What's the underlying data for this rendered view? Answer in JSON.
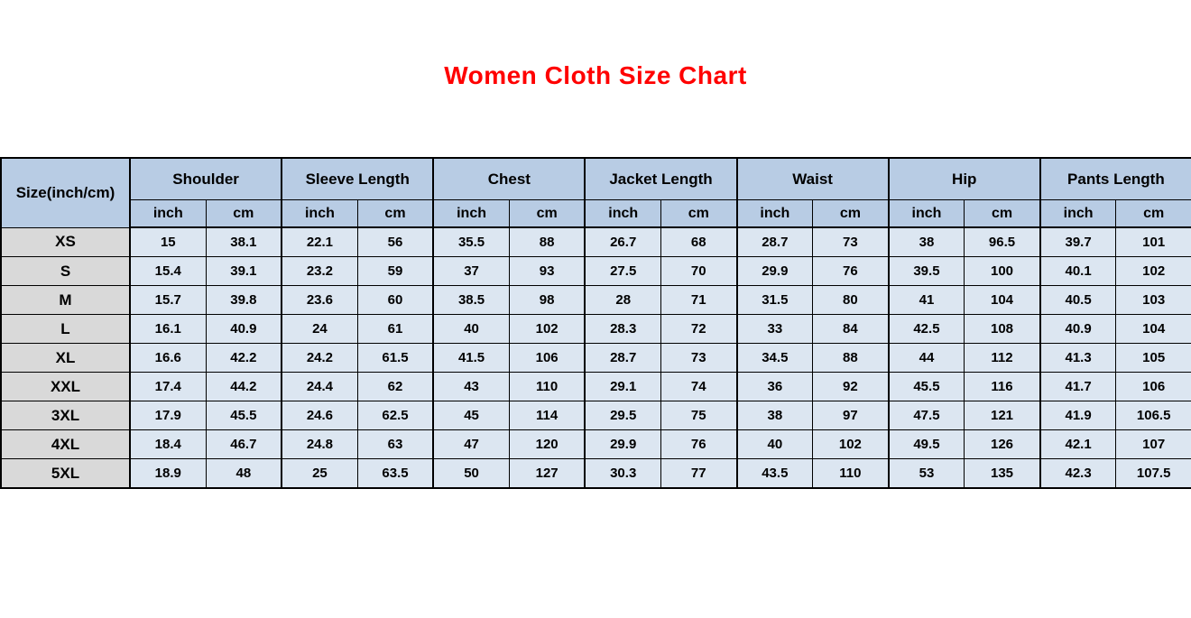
{
  "title": "Women Cloth Size Chart",
  "colors": {
    "title": "#ff0000",
    "header_bg": "#b8cce4",
    "cell_bg": "#dce6f1",
    "size_column_bg": "#d9d9d9",
    "border": "#000000",
    "page_bg": "#ffffff"
  },
  "chart_data": {
    "type": "table",
    "title": "Women Cloth Size Chart",
    "corner_header": "Size(inch/cm)",
    "column_groups": [
      "Shoulder",
      "Sleeve Length",
      "Chest",
      "Jacket Length",
      "Waist",
      "Hip",
      "Pants Length"
    ],
    "sub_columns": [
      "inch",
      "cm"
    ],
    "rows": [
      {
        "size": "XS",
        "values": [
          "15",
          "38.1",
          "22.1",
          "56",
          "35.5",
          "88",
          "26.7",
          "68",
          "28.7",
          "73",
          "38",
          "96.5",
          "39.7",
          "101"
        ]
      },
      {
        "size": "S",
        "values": [
          "15.4",
          "39.1",
          "23.2",
          "59",
          "37",
          "93",
          "27.5",
          "70",
          "29.9",
          "76",
          "39.5",
          "100",
          "40.1",
          "102"
        ]
      },
      {
        "size": "M",
        "values": [
          "15.7",
          "39.8",
          "23.6",
          "60",
          "38.5",
          "98",
          "28",
          "71",
          "31.5",
          "80",
          "41",
          "104",
          "40.5",
          "103"
        ]
      },
      {
        "size": "L",
        "values": [
          "16.1",
          "40.9",
          "24",
          "61",
          "40",
          "102",
          "28.3",
          "72",
          "33",
          "84",
          "42.5",
          "108",
          "40.9",
          "104"
        ]
      },
      {
        "size": "XL",
        "values": [
          "16.6",
          "42.2",
          "24.2",
          "61.5",
          "41.5",
          "106",
          "28.7",
          "73",
          "34.5",
          "88",
          "44",
          "112",
          "41.3",
          "105"
        ]
      },
      {
        "size": "XXL",
        "values": [
          "17.4",
          "44.2",
          "24.4",
          "62",
          "43",
          "110",
          "29.1",
          "74",
          "36",
          "92",
          "45.5",
          "116",
          "41.7",
          "106"
        ]
      },
      {
        "size": "3XL",
        "values": [
          "17.9",
          "45.5",
          "24.6",
          "62.5",
          "45",
          "114",
          "29.5",
          "75",
          "38",
          "97",
          "47.5",
          "121",
          "41.9",
          "106.5"
        ]
      },
      {
        "size": "4XL",
        "values": [
          "18.4",
          "46.7",
          "24.8",
          "63",
          "47",
          "120",
          "29.9",
          "76",
          "40",
          "102",
          "49.5",
          "126",
          "42.1",
          "107"
        ]
      },
      {
        "size": "5XL",
        "values": [
          "18.9",
          "48",
          "25",
          "63.5",
          "50",
          "127",
          "30.3",
          "77",
          "43.5",
          "110",
          "53",
          "135",
          "42.3",
          "107.5"
        ]
      }
    ]
  }
}
